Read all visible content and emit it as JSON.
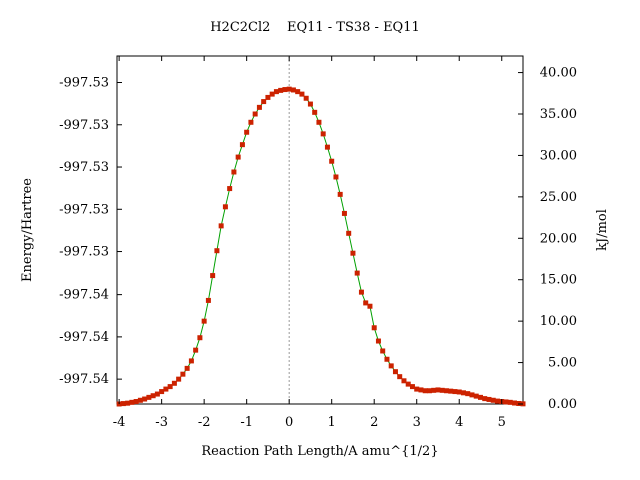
{
  "chart_data": {
    "type": "line",
    "title": "H2C2Cl2    EQ11 - TS38 - EQ11",
    "xlabel": "Reaction Path Length/A amu^{1/2}",
    "ylabel_left": "Energy/Hartree",
    "ylabel_right": "kJ/mol",
    "xlim": [
      -4.05,
      5.5
    ],
    "ylim_right": [
      0,
      42
    ],
    "x_ticks": [
      -4,
      -3,
      -2,
      -1,
      0,
      1,
      2,
      3,
      4,
      5
    ],
    "x_tick_labels": [
      "-4",
      "-3",
      "-2",
      "-1",
      "0",
      "1",
      "2",
      "3",
      "4",
      "5"
    ],
    "right_ticks": [
      0,
      5,
      10,
      15,
      20,
      25,
      30,
      35,
      40
    ],
    "right_tick_labels": [
      "0.00",
      "5.00",
      "10.00",
      "15.00",
      "20.00",
      "25.00",
      "30.00",
      "35.00",
      "40.00"
    ],
    "left_ticks_kj": [
      3.0,
      8.1,
      13.2,
      18.4,
      23.5,
      28.6,
      33.7,
      38.8
    ],
    "left_tick_labels": [
      "-997.54",
      "-997.54",
      "-997.54",
      "-997.53",
      "-997.53",
      "-997.53",
      "-997.53",
      "-997.53"
    ],
    "ts_marker_x": 0,
    "line_color": "#00a000",
    "marker_color": "#cc2200",
    "grid": false,
    "series": [
      {
        "x": [
          -4.0,
          -3.9,
          -3.8,
          -3.7,
          -3.6,
          -3.5,
          -3.4,
          -3.3,
          -3.2,
          -3.1,
          -3.0,
          -2.9,
          -2.8,
          -2.7,
          -2.6,
          -2.5,
          -2.4,
          -2.3,
          -2.2,
          -2.1,
          -2.0,
          -1.9,
          -1.8,
          -1.7,
          -1.6,
          -1.5,
          -1.4,
          -1.3,
          -1.2,
          -1.1,
          -1.0,
          -0.9,
          -0.8,
          -0.7,
          -0.6,
          -0.5,
          -0.4,
          -0.3,
          -0.2,
          -0.1,
          0.0,
          0.1,
          0.2,
          0.3,
          0.4,
          0.5,
          0.6,
          0.7,
          0.8,
          0.9,
          1.0,
          1.1,
          1.2,
          1.3,
          1.4,
          1.5,
          1.6,
          1.7,
          1.8,
          1.9,
          2.0,
          2.1,
          2.2,
          2.3,
          2.4,
          2.5,
          2.6,
          2.7,
          2.8,
          2.9,
          3.0,
          3.1,
          3.2,
          3.3,
          3.4,
          3.5,
          3.6,
          3.7,
          3.8,
          3.9,
          4.0,
          4.1,
          4.2,
          4.3,
          4.4,
          4.5,
          4.6,
          4.7,
          4.8,
          4.9,
          5.0,
          5.1,
          5.2,
          5.3,
          5.4,
          5.5
        ],
        "y": [
          0.0,
          0.05,
          0.1,
          0.2,
          0.3,
          0.45,
          0.6,
          0.8,
          1.0,
          1.2,
          1.5,
          1.8,
          2.1,
          2.5,
          3.0,
          3.6,
          4.3,
          5.2,
          6.5,
          8.0,
          10.0,
          12.5,
          15.5,
          18.5,
          21.5,
          23.8,
          26.0,
          28.0,
          29.8,
          31.3,
          32.8,
          34.0,
          35.0,
          35.8,
          36.5,
          37.0,
          37.4,
          37.7,
          37.85,
          37.95,
          38.0,
          37.9,
          37.7,
          37.4,
          36.9,
          36.2,
          35.2,
          34.0,
          32.6,
          31.0,
          29.3,
          27.4,
          25.3,
          23.0,
          20.6,
          18.2,
          15.8,
          13.5,
          12.2,
          11.8,
          9.2,
          7.6,
          6.4,
          5.4,
          4.6,
          3.9,
          3.3,
          2.8,
          2.4,
          2.1,
          1.8,
          1.7,
          1.6,
          1.6,
          1.65,
          1.7,
          1.65,
          1.6,
          1.55,
          1.5,
          1.45,
          1.35,
          1.25,
          1.1,
          0.95,
          0.8,
          0.65,
          0.55,
          0.45,
          0.35,
          0.3,
          0.25,
          0.2,
          0.12,
          0.06,
          0.02
        ]
      }
    ]
  }
}
